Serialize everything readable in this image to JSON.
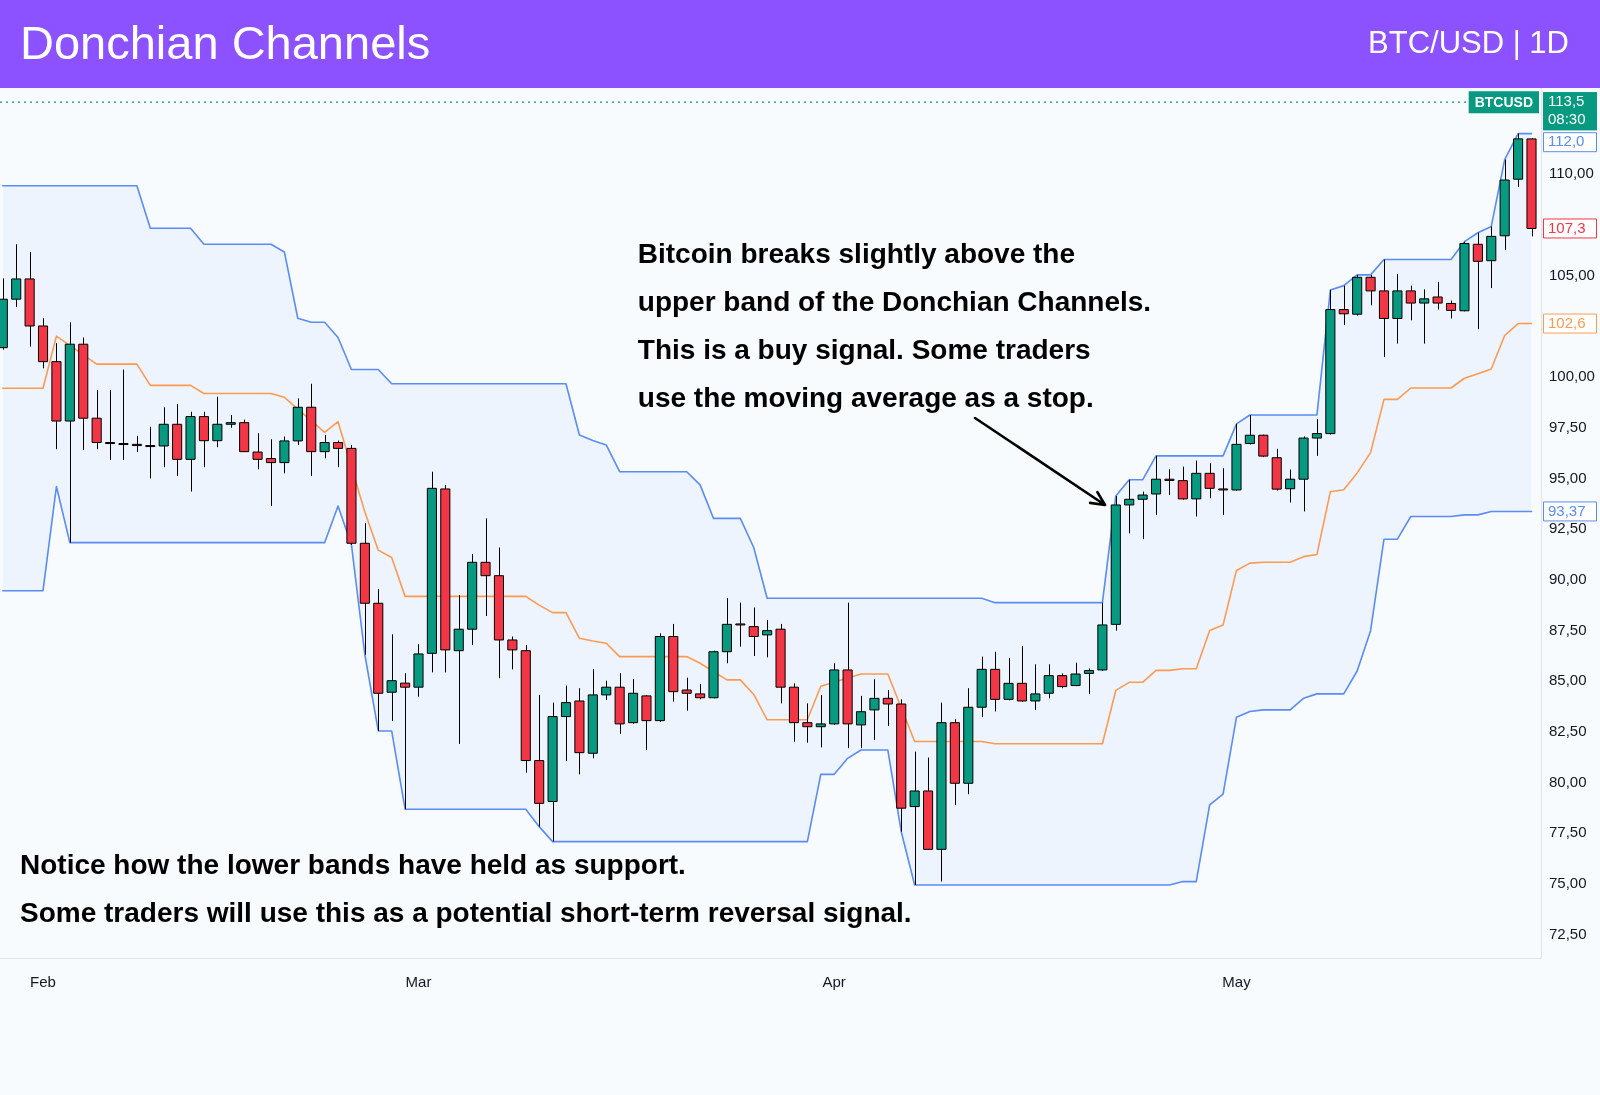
{
  "chart_data": {
    "type": "candlestick",
    "title": "Donchian Channels",
    "subtitle": "BTC/USD | 1D",
    "x": [
      "--01-29",
      "--01-30",
      "--01-31",
      "--02-01",
      "--02-02",
      "--02-03",
      "--02-04",
      "--02-05",
      "--02-06",
      "--02-07",
      "--02-08",
      "--02-09",
      "--02-10",
      "--02-11",
      "--02-12",
      "--02-13",
      "--02-14",
      "--02-15",
      "--02-16",
      "--02-17",
      "--02-18",
      "--02-19",
      "--02-20",
      "--02-21",
      "--02-22",
      "--02-23",
      "--02-24",
      "--02-25",
      "--02-26",
      "--02-27",
      "--02-28",
      "--03-01",
      "--03-02",
      "--03-03",
      "--03-04",
      "--03-05",
      "--03-06",
      "--03-07",
      "--03-08",
      "--03-09",
      "--03-10",
      "--03-11",
      "--03-12",
      "--03-13",
      "--03-14",
      "--03-15",
      "--03-16",
      "--03-17",
      "--03-18",
      "--03-19",
      "--03-20",
      "--03-21",
      "--03-22",
      "--03-23",
      "--03-24",
      "--03-25",
      "--03-26",
      "--03-27",
      "--03-28",
      "--03-29",
      "--03-30",
      "--03-31",
      "--04-01",
      "--04-02",
      "--04-03",
      "--04-04",
      "--04-05",
      "--04-06",
      "--04-07",
      "--04-08",
      "--04-09",
      "--04-10",
      "--04-11",
      "--04-12",
      "--04-13",
      "--04-14",
      "--04-15",
      "--04-16",
      "--04-17",
      "--04-18",
      "--04-19",
      "--04-20",
      "--04-21",
      "--04-22",
      "--04-23",
      "--04-24",
      "--04-25",
      "--04-26",
      "--04-27",
      "--04-28",
      "--04-29",
      "--04-30",
      "--05-01",
      "--05-02",
      "--05-03",
      "--05-04",
      "--05-05",
      "--05-06",
      "--05-07",
      "--05-08",
      "--05-09",
      "--05-10",
      "--05-11",
      "--05-12",
      "--05-13",
      "--05-14",
      "--05-15",
      "--05-16",
      "--05-17",
      "--05-18",
      "--05-19",
      "--05-20",
      "--05-21",
      "--05-22",
      "--05-23"
    ],
    "ohlc": [
      [
        101.45,
        104.87,
        101.35,
        103.84
      ],
      [
        103.84,
        106.55,
        103.46,
        104.84
      ],
      [
        104.84,
        106.17,
        101.5,
        102.52
      ],
      [
        102.52,
        102.9,
        100.43,
        100.76
      ],
      [
        100.76,
        101.67,
        96.44,
        97.83
      ],
      [
        97.83,
        102.7,
        91.83,
        101.62
      ],
      [
        101.62,
        101.95,
        96.4,
        97.97
      ],
      [
        97.97,
        99.36,
        96.44,
        96.77
      ],
      [
        96.77,
        99.36,
        95.91,
        96.72
      ],
      [
        96.72,
        100.37,
        95.91,
        96.68
      ],
      [
        96.68,
        97.1,
        96.3,
        96.62
      ],
      [
        96.62,
        97.55,
        95.0,
        96.6
      ],
      [
        96.6,
        98.51,
        95.55,
        97.67
      ],
      [
        97.67,
        98.67,
        95.12,
        95.94
      ],
      [
        95.94,
        98.29,
        94.35,
        98.05
      ],
      [
        98.05,
        98.29,
        95.55,
        96.86
      ],
      [
        96.86,
        99.03,
        96.54,
        97.67
      ],
      [
        97.67,
        98.13,
        97.5,
        97.75
      ],
      [
        97.75,
        97.9,
        96.3,
        96.32
      ],
      [
        96.3,
        97.23,
        95.45,
        95.94
      ],
      [
        95.98,
        96.93,
        93.64,
        95.78
      ],
      [
        95.78,
        97.07,
        95.25,
        96.85
      ],
      [
        96.85,
        98.95,
        96.65,
        98.51
      ],
      [
        98.51,
        99.67,
        95.12,
        96.32
      ],
      [
        96.32,
        97.14,
        95.99,
        96.77
      ],
      [
        96.77,
        96.87,
        95.55,
        96.48
      ],
      [
        96.48,
        96.65,
        91.72,
        91.8
      ],
      [
        91.8,
        92.79,
        86.3,
        88.84
      ],
      [
        88.84,
        89.55,
        82.54,
        84.4
      ],
      [
        84.45,
        87.31,
        83.03,
        85.02
      ],
      [
        84.9,
        85.39,
        78.68,
        84.7
      ],
      [
        84.7,
        86.82,
        84.23,
        86.34
      ],
      [
        86.37,
        95.33,
        85.43,
        94.51
      ],
      [
        94.48,
        94.68,
        85.43,
        86.54
      ],
      [
        86.5,
        89.25,
        81.9,
        87.56
      ],
      [
        87.56,
        91.27,
        86.78,
        90.86
      ],
      [
        90.86,
        93.03,
        88.21,
        90.2
      ],
      [
        90.2,
        91.59,
        85.14,
        87.03
      ],
      [
        87.03,
        87.2,
        85.58,
        86.54
      ],
      [
        86.5,
        86.78,
        80.48,
        81.08
      ],
      [
        81.08,
        84.32,
        77.82,
        78.97
      ],
      [
        79.06,
        83.94,
        77.08,
        83.25
      ],
      [
        83.25,
        84.78,
        81.06,
        83.94
      ],
      [
        84.02,
        84.65,
        80.4,
        81.47
      ],
      [
        81.44,
        85.6,
        81.19,
        84.32
      ],
      [
        84.32,
        85.02,
        84.07,
        84.7
      ],
      [
        84.7,
        85.39,
        82.4,
        82.89
      ],
      [
        82.95,
        85.11,
        82.9,
        84.4
      ],
      [
        84.27,
        84.32,
        81.6,
        83.05
      ],
      [
        83.05,
        87.36,
        82.98,
        87.2
      ],
      [
        87.2,
        87.82,
        83.99,
        84.48
      ],
      [
        84.56,
        85.17,
        83.54,
        84.4
      ],
      [
        84.37,
        84.86,
        84.1,
        84.18
      ],
      [
        84.18,
        86.5,
        84.15,
        86.45
      ],
      [
        86.45,
        89.09,
        85.88,
        87.8
      ],
      [
        87.82,
        88.87,
        86.7,
        87.78
      ],
      [
        87.69,
        88.63,
        86.24,
        87.2
      ],
      [
        87.28,
        88.02,
        86.17,
        87.49
      ],
      [
        87.56,
        87.82,
        83.9,
        84.7
      ],
      [
        84.7,
        84.89,
        82.01,
        82.95
      ],
      [
        82.95,
        83.9,
        81.96,
        82.75
      ],
      [
        82.75,
        84.32,
        81.73,
        82.89
      ],
      [
        82.89,
        85.88,
        82.84,
        85.55
      ],
      [
        85.55,
        88.87,
        81.69,
        82.89
      ],
      [
        82.84,
        84.27,
        81.69,
        83.49
      ],
      [
        83.58,
        85.09,
        82.1,
        84.15
      ],
      [
        84.15,
        84.56,
        82.79,
        83.87
      ],
      [
        83.87,
        84.1,
        77.57,
        78.73
      ],
      [
        78.81,
        81.52,
        74.94,
        79.58
      ],
      [
        79.58,
        81.23,
        76.67,
        76.7
      ],
      [
        76.7,
        83.94,
        75.11,
        82.95
      ],
      [
        82.95,
        83.12,
        78.89,
        79.96
      ],
      [
        79.96,
        84.65,
        79.42,
        83.71
      ],
      [
        83.71,
        86.21,
        83.22,
        85.58
      ],
      [
        85.58,
        86.45,
        83.5,
        84.1
      ],
      [
        84.1,
        86.13,
        84.05,
        84.89
      ],
      [
        84.89,
        86.73,
        83.98,
        84.02
      ],
      [
        84.02,
        85.83,
        83.58,
        84.37
      ],
      [
        84.4,
        85.83,
        84.15,
        85.27
      ],
      [
        85.27,
        85.38,
        84.65,
        84.73
      ],
      [
        84.78,
        85.91,
        84.75,
        85.35
      ],
      [
        85.38,
        85.63,
        84.37,
        85.52
      ],
      [
        85.55,
        88.87,
        85.5,
        87.77
      ],
      [
        87.8,
        94.13,
        87.49,
        93.69
      ],
      [
        93.69,
        94.93,
        92.29,
        93.97
      ],
      [
        93.97,
        94.35,
        92.0,
        94.18
      ],
      [
        94.23,
        96.11,
        93.2,
        94.96
      ],
      [
        94.96,
        95.45,
        94.18,
        94.9
      ],
      [
        94.89,
        95.58,
        93.95,
        93.99
      ],
      [
        93.99,
        95.88,
        93.12,
        95.25
      ],
      [
        95.25,
        95.75,
        94.02,
        94.51
      ],
      [
        94.48,
        95.5,
        93.2,
        94.43
      ],
      [
        94.43,
        97.69,
        94.4,
        96.68
      ],
      [
        96.72,
        98.13,
        96.67,
        97.13
      ],
      [
        97.13,
        97.16,
        96.05,
        96.1
      ],
      [
        96.02,
        96.46,
        94.4,
        94.47
      ],
      [
        94.49,
        95.44,
        93.81,
        94.96
      ],
      [
        94.96,
        97.07,
        93.37,
        96.99
      ],
      [
        96.99,
        97.92,
        96.11,
        97.21
      ],
      [
        97.21,
        104.3,
        97.16,
        103.33
      ],
      [
        103.33,
        104.51,
        102.57,
        103.12
      ],
      [
        103.1,
        105.04,
        103.03,
        104.92
      ],
      [
        104.92,
        105.04,
        103.54,
        104.25
      ],
      [
        104.25,
        105.8,
        100.99,
        102.89
      ],
      [
        102.89,
        105.09,
        101.65,
        104.25
      ],
      [
        104.25,
        104.51,
        102.8,
        103.65
      ],
      [
        103.65,
        104.33,
        101.65,
        103.86
      ],
      [
        103.95,
        104.7,
        103.33,
        103.65
      ],
      [
        103.63,
        103.77,
        102.89,
        103.29
      ],
      [
        103.27,
        106.68,
        103.24,
        106.59
      ],
      [
        106.55,
        107.12,
        102.36,
        105.71
      ],
      [
        105.74,
        107.43,
        104.39,
        106.94
      ],
      [
        106.97,
        110.73,
        106.27,
        109.72
      ],
      [
        109.76,
        112.01,
        109.37,
        111.75
      ],
      [
        111.75,
        111.8,
        106.94,
        107.33
      ]
    ],
    "colors": [
      "#089981",
      "#089981",
      "#f23645",
      "#f23645",
      "#f23645",
      "#089981",
      "#f23645",
      "#f23645",
      "#f23645",
      "#f23645",
      "#f23645",
      "#f23645",
      "#089981",
      "#f23645",
      "#089981",
      "#f23645",
      "#089981",
      "#089981",
      "#f23645",
      "#f23645",
      "#f23645",
      "#089981",
      "#089981",
      "#f23645",
      "#089981",
      "#f23645",
      "#f23645",
      "#f23645",
      "#f23645",
      "#089981",
      "#f23645",
      "#089981",
      "#089981",
      "#f23645",
      "#089981",
      "#089981",
      "#f23645",
      "#f23645",
      "#f23645",
      "#f23645",
      "#f23645",
      "#089981",
      "#089981",
      "#f23645",
      "#089981",
      "#089981",
      "#f23645",
      "#089981",
      "#f23645",
      "#089981",
      "#f23645",
      "#f23645",
      "#f23645",
      "#089981",
      "#089981",
      "#f23645",
      "#f23645",
      "#089981",
      "#f23645",
      "#f23645",
      "#f23645",
      "#089981",
      "#089981",
      "#f23645",
      "#089981",
      "#089981",
      "#f23645",
      "#f23645",
      "#089981",
      "#f23645",
      "#089981",
      "#f23645",
      "#089981",
      "#089981",
      "#f23645",
      "#089981",
      "#f23645",
      "#089981",
      "#089981",
      "#f23645",
      "#089981",
      "#089981",
      "#089981",
      "#089981",
      "#089981",
      "#089981",
      "#089981",
      "#f23645",
      "#f23645",
      "#089981",
      "#f23645",
      "#f23645",
      "#089981",
      "#089981",
      "#f23645",
      "#f23645",
      "#089981",
      "#089981",
      "#089981",
      "#089981",
      "#f23645",
      "#089981",
      "#f23645",
      "#f23645",
      "#089981",
      "#f23645",
      "#089981",
      "#f23645",
      "#f23645",
      "#089981",
      "#f23645",
      "#089981",
      "#089981",
      "#089981",
      "#f23645"
    ],
    "value_labels": [
      null,
      null,
      null,
      null,
      null,
      null,
      null,
      null,
      null,
      null,
      null,
      null,
      null,
      null,
      null,
      null,
      null,
      null,
      null,
      null,
      null,
      null,
      null,
      null,
      null,
      null,
      null,
      null,
      null,
      null,
      null,
      null,
      null,
      null,
      null,
      null,
      null,
      null,
      null,
      null,
      null,
      null,
      null,
      null,
      null,
      null,
      null,
      null,
      null,
      null,
      null,
      null,
      null,
      null,
      null,
      null,
      null,
      null,
      null,
      null,
      null,
      null,
      null,
      null,
      null,
      null,
      null,
      null,
      null,
      null,
      null,
      null,
      null,
      null,
      null,
      null,
      null,
      null,
      null,
      null,
      null,
      null,
      null,
      null,
      null,
      null,
      null,
      null,
      null,
      null,
      null,
      null,
      null,
      null,
      null,
      null,
      null,
      null,
      null,
      null,
      null,
      null,
      null,
      null,
      null,
      null,
      null,
      null,
      null,
      null,
      null,
      null,
      null,
      null,
      "107,3"
    ],
    "series": [
      {
        "type": "line",
        "color": "#5a8cf5",
        "values": [
          109.44,
          109.44,
          109.44,
          109.44,
          109.44,
          109.44,
          109.44,
          109.44,
          109.44,
          109.44,
          109.44,
          107.34,
          107.34,
          107.34,
          107.34,
          106.55,
          106.55,
          106.55,
          106.55,
          106.55,
          106.55,
          106.17,
          102.9,
          102.7,
          102.7,
          101.95,
          100.37,
          100.37,
          100.37,
          99.67,
          99.67,
          99.67,
          99.67,
          99.67,
          99.67,
          99.67,
          99.67,
          99.67,
          99.67,
          99.67,
          99.67,
          99.67,
          99.67,
          97.14,
          96.87,
          96.65,
          95.33,
          95.33,
          95.33,
          95.33,
          95.33,
          95.33,
          94.68,
          93.03,
          93.03,
          93.03,
          91.59,
          89.09,
          89.09,
          89.09,
          89.09,
          89.09,
          89.09,
          89.09,
          89.09,
          89.09,
          89.09,
          89.09,
          89.09,
          89.09,
          89.09,
          89.09,
          89.09,
          89.09,
          88.87,
          88.87,
          88.87,
          88.87,
          88.87,
          88.87,
          88.87,
          88.87,
          88.87,
          94.13,
          94.93,
          94.93,
          96.11,
          96.11,
          96.11,
          96.11,
          96.11,
          96.11,
          97.69,
          98.13,
          98.13,
          98.13,
          98.13,
          98.13,
          98.13,
          104.3,
          104.51,
          105.04,
          105.04,
          105.8,
          105.8,
          105.8,
          105.8,
          105.8,
          105.8,
          106.68,
          107.12,
          107.43,
          110.73,
          112.01,
          112.01
        ],
        "upper": [
          109.44,
          109.44,
          109.44,
          109.44,
          109.44,
          109.44,
          109.44,
          109.44,
          109.44,
          109.44,
          109.44,
          107.34,
          107.34,
          107.34,
          107.34,
          106.55,
          106.55,
          106.55,
          106.55,
          106.55,
          106.55,
          106.17,
          102.9,
          102.7,
          102.7,
          101.95,
          100.37,
          100.37,
          100.37,
          99.67,
          99.67,
          99.67,
          99.67,
          99.67,
          99.67,
          99.67,
          99.67,
          99.67,
          99.67,
          99.67,
          99.67,
          99.67,
          99.67,
          97.14,
          96.87,
          96.65,
          95.33,
          95.33,
          95.33,
          95.33,
          95.33,
          95.33,
          94.68,
          93.03,
          93.03,
          93.03,
          91.59,
          89.09,
          89.09,
          89.09,
          89.09,
          89.09,
          89.09,
          89.09,
          89.09,
          89.09,
          89.09,
          89.09,
          89.09,
          89.09,
          89.09,
          89.09,
          89.09,
          89.09,
          88.87,
          88.87,
          88.87,
          88.87,
          88.87,
          88.87,
          88.87,
          88.87,
          88.87,
          94.13,
          94.93,
          94.93,
          96.11,
          96.11,
          96.11,
          96.11,
          96.11,
          96.11,
          97.69,
          98.13,
          98.13,
          98.13,
          98.13,
          98.13,
          98.13,
          104.3,
          104.51,
          105.04,
          105.04,
          105.8,
          105.8,
          105.8,
          105.8,
          105.8,
          105.8,
          106.68,
          107.12,
          107.43,
          110.73,
          112.01,
          112.01
        ],
        "lower": [
          89.46,
          89.46,
          89.46,
          89.46,
          94.6,
          91.83,
          91.83,
          91.83,
          91.83,
          91.83,
          91.83,
          91.83,
          91.83,
          91.83,
          91.83,
          91.83,
          91.83,
          91.83,
          91.83,
          91.83,
          91.83,
          91.83,
          91.83,
          91.83,
          91.83,
          93.64,
          91.72,
          86.3,
          82.54,
          82.54,
          78.68,
          78.68,
          78.68,
          78.68,
          78.68,
          78.68,
          78.68,
          78.68,
          78.68,
          78.68,
          77.82,
          77.08,
          77.08,
          77.08,
          77.08,
          77.08,
          77.08,
          77.08,
          77.08,
          77.08,
          77.08,
          77.08,
          77.08,
          77.08,
          77.08,
          77.08,
          77.08,
          77.08,
          77.08,
          77.08,
          77.08,
          80.4,
          80.4,
          81.19,
          81.6,
          81.6,
          81.6,
          77.57,
          74.94,
          74.94,
          74.94,
          74.94,
          74.94,
          74.94,
          74.94,
          74.94,
          74.94,
          74.94,
          74.94,
          74.94,
          74.94,
          74.94,
          74.94,
          74.94,
          74.94,
          74.94,
          74.94,
          74.94,
          75.11,
          75.11,
          78.89,
          79.42,
          83.22,
          83.5,
          83.58,
          83.58,
          83.58,
          84.15,
          84.37,
          84.37,
          84.37,
          85.5,
          87.49,
          92.0,
          92.0,
          93.12,
          93.12,
          93.12,
          93.12,
          93.2,
          93.2,
          93.37,
          93.37,
          93.37,
          93.37
        ],
        "value_labels": [
          null,
          null,
          null,
          null,
          null,
          null,
          null,
          null,
          null,
          null,
          null,
          null,
          null,
          null,
          null,
          null,
          null,
          null,
          null,
          null,
          null,
          null,
          null,
          null,
          null,
          null,
          null,
          null,
          null,
          null,
          null,
          null,
          null,
          null,
          null,
          null,
          null,
          null,
          null,
          null,
          null,
          null,
          null,
          null,
          null,
          null,
          null,
          null,
          null,
          null,
          null,
          null,
          null,
          null,
          null,
          null,
          null,
          null,
          null,
          null,
          null,
          null,
          null,
          null,
          null,
          null,
          null,
          null,
          null,
          null,
          null,
          null,
          null,
          null,
          null,
          null,
          null,
          null,
          null,
          null,
          null,
          null,
          null,
          null,
          null,
          null,
          null,
          null,
          null,
          null,
          null,
          null,
          null,
          null,
          null,
          null,
          null,
          null,
          null,
          null,
          null,
          null,
          null,
          null,
          null,
          null,
          null,
          null,
          null,
          null,
          null,
          null,
          null,
          null,
          "112,0"
        ]
      },
      {
        "type": "line",
        "color": "#fd9a52",
        "values": [
          99.45,
          99.45,
          99.45,
          99.45,
          102.02,
          null,
          null,
          100.64,
          100.64,
          100.64,
          100.64,
          99.59,
          99.59,
          99.59,
          99.59,
          99.19,
          99.19,
          99.19,
          99.19,
          99.19,
          99.19,
          99.0,
          null,
          null,
          97.27,
          97.8,
          null,
          93.34,
          91.46,
          91.1,
          89.18,
          89.18,
          null,
          null,
          89.18,
          null,
          89.18,
          null,
          89.18,
          89.18,
          88.75,
          88.38,
          88.38,
          87.11,
          86.98,
          86.87,
          86.21,
          86.21,
          86.21,
          null,
          null,
          86.21,
          85.88,
          null,
          85.06,
          85.06,
          84.34,
          83.09,
          83.09,
          null,
          83.09,
          84.75,
          null,
          null,
          85.35,
          85.35,
          85.35,
          null,
          82.02,
          82.02,
          null,
          null,
          null,
          82.02,
          81.91,
          81.91,
          81.91,
          81.91,
          81.91,
          81.91,
          81.91,
          81.91,
          81.91,
          84.54,
          84.94,
          84.94,
          85.53,
          85.53,
          85.61,
          85.61,
          87.5,
          87.77,
          90.46,
          90.82,
          90.86,
          90.86,
          90.86,
          91.14,
          91.25,
          94.34,
          94.44,
          95.27,
          96.27,
          98.9,
          98.9,
          99.46,
          99.46,
          99.46,
          99.46,
          99.94,
          100.16,
          100.4,
          102.05,
          102.64,
          102.64
        ],
        "value_labels": [
          null,
          null,
          null,
          null,
          null,
          null,
          null,
          null,
          null,
          null,
          null,
          null,
          null,
          null,
          null,
          null,
          null,
          null,
          null,
          null,
          null,
          null,
          null,
          null,
          null,
          null,
          null,
          null,
          null,
          null,
          null,
          null,
          null,
          null,
          null,
          null,
          null,
          null,
          null,
          null,
          null,
          null,
          null,
          null,
          null,
          null,
          null,
          null,
          null,
          null,
          null,
          null,
          null,
          null,
          null,
          null,
          null,
          null,
          null,
          null,
          null,
          null,
          null,
          null,
          null,
          null,
          null,
          null,
          null,
          null,
          null,
          null,
          null,
          null,
          null,
          null,
          null,
          null,
          null,
          null,
          null,
          null,
          null,
          null,
          null,
          null,
          null,
          null,
          null,
          null,
          null,
          null,
          null,
          null,
          null,
          null,
          null,
          null,
          null,
          null,
          null,
          null,
          null,
          null,
          null,
          null,
          null,
          null,
          null,
          null,
          null,
          null,
          null,
          null,
          "102,6"
        ]
      },
      {
        "type": "line",
        "color": "#5a8cf5",
        "values": [
          89.46,
          89.46,
          89.46,
          89.46,
          94.6,
          91.83,
          91.83,
          91.83,
          91.83,
          91.83,
          91.83,
          91.83,
          91.83,
          91.83,
          91.83,
          91.83,
          91.83,
          91.83,
          91.83,
          91.83,
          91.83,
          91.83,
          91.83,
          91.83,
          91.83,
          93.64,
          91.72,
          86.3,
          82.54,
          82.54,
          78.68,
          78.68,
          78.68,
          78.68,
          78.68,
          78.68,
          78.68,
          78.68,
          78.68,
          78.68,
          77.82,
          77.08,
          77.08,
          77.08,
          77.08,
          77.08,
          77.08,
          77.08,
          77.08,
          77.08,
          77.08,
          77.08,
          77.08,
          77.08,
          77.08,
          77.08,
          77.08,
          77.08,
          77.08,
          77.08,
          77.08,
          80.4,
          80.4,
          81.19,
          81.6,
          81.6,
          81.6,
          77.57,
          74.94,
          74.94,
          74.94,
          74.94,
          74.94,
          74.94,
          74.94,
          74.94,
          74.94,
          74.94,
          74.94,
          74.94,
          74.94,
          74.94,
          74.94,
          74.94,
          74.94,
          74.94,
          74.94,
          74.94,
          75.11,
          75.11,
          78.89,
          79.42,
          83.22,
          83.5,
          83.58,
          83.58,
          83.58,
          84.15,
          84.37,
          84.37,
          84.37,
          85.5,
          87.49,
          92.0,
          92.0,
          93.12,
          93.12,
          93.12,
          93.12,
          93.2,
          93.2,
          93.37,
          93.37,
          93.37,
          93.37
        ],
        "value_labels": [
          null,
          null,
          null,
          null,
          null,
          null,
          null,
          null,
          null,
          null,
          null,
          null,
          null,
          null,
          null,
          null,
          null,
          null,
          null,
          null,
          null,
          null,
          null,
          null,
          null,
          null,
          null,
          null,
          null,
          null,
          null,
          null,
          null,
          null,
          null,
          null,
          null,
          null,
          null,
          null,
          null,
          null,
          null,
          null,
          null,
          null,
          null,
          null,
          null,
          null,
          null,
          null,
          null,
          null,
          null,
          null,
          null,
          null,
          null,
          null,
          null,
          null,
          null,
          null,
          null,
          null,
          null,
          null,
          null,
          null,
          null,
          null,
          null,
          null,
          null,
          null,
          null,
          null,
          null,
          null,
          null,
          null,
          null,
          null,
          null,
          null,
          null,
          null,
          null,
          null,
          null,
          null,
          null,
          null,
          null,
          null,
          null,
          null,
          null,
          null,
          null,
          null,
          null,
          null,
          null,
          null,
          null,
          null,
          null,
          null,
          null,
          null,
          null,
          null,
          "93,37"
        ]
      }
    ],
    "xlim": [
      "--01-28T19:00",
      "--05-23T17:00"
    ],
    "xticks": [
      {
        "value": "--02-01",
        "label": "Feb"
      },
      {
        "value": "--03-01",
        "label": "Mar"
      },
      {
        "value": "--04-01",
        "label": "Apr"
      },
      {
        "value": "--05-01",
        "label": "May"
      }
    ],
    "ylim": [
      71.34,
      114.26
    ],
    "yticks": [
      {
        "value": 72.5,
        "label": "72,50"
      },
      {
        "value": 75,
        "label": "75,00"
      },
      {
        "value": 77.5,
        "label": "77,50"
      },
      {
        "value": 80,
        "label": "80,00"
      },
      {
        "value": 82.5,
        "label": "82,50"
      },
      {
        "value": 85,
        "label": "85,00"
      },
      {
        "value": 87.5,
        "label": "87,50"
      },
      {
        "value": 90,
        "label": "90,00"
      },
      {
        "value": 92.5,
        "label": "92,50"
      },
      {
        "value": 95,
        "label": "95,00"
      },
      {
        "value": 97.5,
        "label": "97,50"
      },
      {
        "value": 100,
        "label": "100,00"
      },
      {
        "value": 105,
        "label": "105,00"
      },
      {
        "value": 110,
        "label": "110,00"
      }
    ],
    "ref_lines": [
      {
        "axis": "y",
        "value": 113.56,
        "label": "BTCUSD",
        "color": "#089981",
        "line_style": "dotted"
      }
    ],
    "annotations": [
      {
        "text": "Bitcoin breaks slightly above the\nupper band of the Donchian Channels.\nThis is a buy signal. Some traders\nuse the moving average as a stop.",
        "x": "--04-22",
        "y": 94.13
      },
      "Notice how the lower bands have held as support.\nSome traders will use this as a potential short-term reversal signal.",
      "113,5\n08:30"
    ]
  }
}
